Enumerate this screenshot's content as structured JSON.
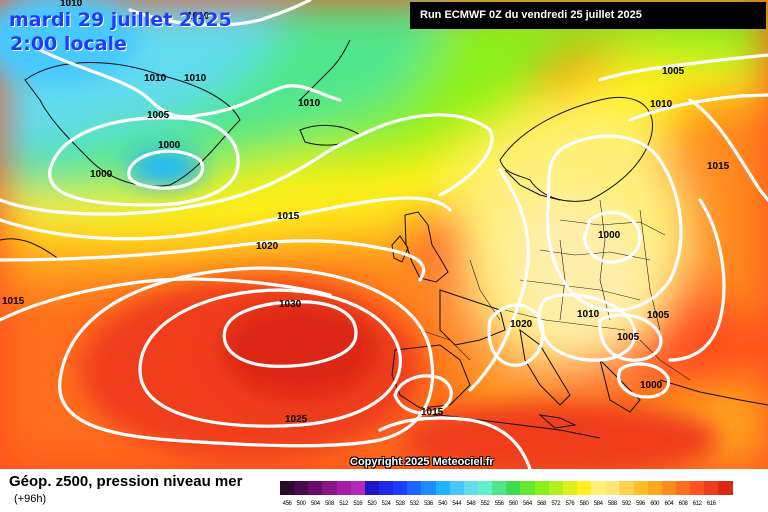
{
  "title": {
    "date_line": "mardi 29 juillet 2025",
    "time_line": "2:00 locale"
  },
  "run_banner": "Run ECMWF 0Z du vendredi 25 juillet 2025",
  "copyright": "Copyright 2025 Meteociel.fr",
  "footer": {
    "title": "Géop. z500, pression niveau mer",
    "lead": "(+96h)"
  },
  "colors": {
    "isobar": "#ffffff",
    "coast": "#111111",
    "banner_bg": "#000000",
    "date_text": "#1c3cff"
  },
  "legend": {
    "colors": [
      "#2a0a2a",
      "#4a0a4a",
      "#6a0a6a",
      "#8a148a",
      "#a31ea3",
      "#b428b4",
      "#1e14c8",
      "#1e28e6",
      "#1e3cff",
      "#1e64ff",
      "#1e8cff",
      "#1eb4ff",
      "#46c8ff",
      "#64dcf0",
      "#64f0c8",
      "#50e68c",
      "#3cdc50",
      "#64e632",
      "#8cf01e",
      "#b4f01e",
      "#dcf01e",
      "#fff01e",
      "#fff07a",
      "#ffe678",
      "#ffd250",
      "#ffbe28",
      "#ffa51e",
      "#ff8c1e",
      "#ff6e1e",
      "#ff501e",
      "#f03c1e",
      "#dc2814",
      "#c81e14",
      "#b41414",
      "#961414",
      "#780a0a",
      "#500505",
      "#000000"
    ],
    "ticks": [
      "456",
      "500",
      "504",
      "508",
      "512",
      "516",
      "520",
      "524",
      "528",
      "532",
      "536",
      "540",
      "544",
      "548",
      "552",
      "556",
      "560",
      "564",
      "568",
      "572",
      "576",
      "580",
      "584",
      "588",
      "592",
      "596",
      "600",
      "604",
      "608",
      "612",
      "616"
    ]
  },
  "pressure_labels": [
    {
      "value": "1010"
    },
    {
      "value": "1010"
    },
    {
      "value": "1010"
    },
    {
      "value": "1010"
    },
    {
      "value": "1010"
    },
    {
      "value": "1005"
    },
    {
      "value": "1000"
    },
    {
      "value": "1000"
    },
    {
      "value": "1015"
    },
    {
      "value": "1020"
    },
    {
      "value": "1015"
    },
    {
      "value": "1030"
    },
    {
      "value": "1025"
    },
    {
      "value": "1015"
    },
    {
      "value": "1005"
    },
    {
      "value": "1010"
    },
    {
      "value": "1015"
    },
    {
      "value": "1000"
    },
    {
      "value": "1020"
    },
    {
      "value": "1010"
    },
    {
      "value": "1005"
    },
    {
      "value": "1005"
    },
    {
      "value": "1000"
    }
  ]
}
